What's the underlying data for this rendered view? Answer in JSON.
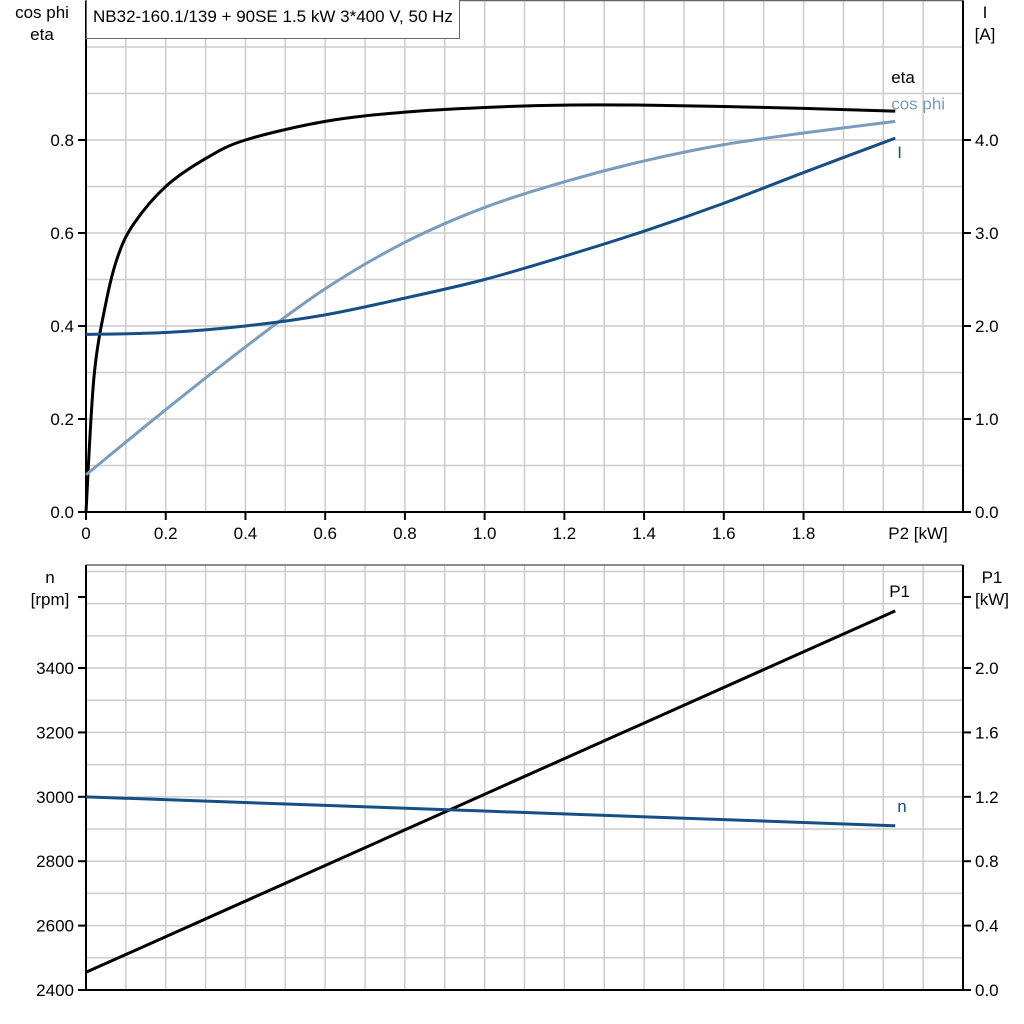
{
  "chart_data": [
    {
      "type": "line",
      "title": "NB32-160.1/139 + 90SE   1.5 kW   3*400 V, 50 Hz",
      "xlabel": "P2 [kW]",
      "ylabel_left": [
        "cos phi",
        "eta"
      ],
      "ylabel_right": [
        "I",
        "[A]"
      ],
      "xlim": [
        0,
        2.2
      ],
      "ylim_left": [
        0,
        1.1
      ],
      "ylim_right": [
        0,
        5.5
      ],
      "x_ticks": [
        "0",
        "0.2",
        "0.4",
        "0.6",
        "0.8",
        "1.0",
        "1.2",
        "1.4",
        "1.6",
        "1.8"
      ],
      "y_ticks_left": [
        "0.0",
        "0.2",
        "0.4",
        "0.6",
        "0.8"
      ],
      "y_ticks_right": [
        "0.0",
        "1.0",
        "2.0",
        "3.0",
        "4.0"
      ],
      "grid": true,
      "series": [
        {
          "name": "eta",
          "axis": "left",
          "color": "#000000",
          "x": [
            0,
            0.02,
            0.05,
            0.08,
            0.12,
            0.2,
            0.3,
            0.4,
            0.6,
            0.8,
            1.0,
            1.2,
            1.4,
            1.6,
            1.8,
            2.03
          ],
          "y": [
            0,
            0.29,
            0.45,
            0.55,
            0.62,
            0.7,
            0.76,
            0.8,
            0.84,
            0.86,
            0.87,
            0.875,
            0.875,
            0.872,
            0.868,
            0.862
          ]
        },
        {
          "name": "cos phi",
          "axis": "left",
          "color": "#7a9cbd",
          "x": [
            0,
            0.2,
            0.4,
            0.6,
            0.8,
            1.0,
            1.2,
            1.4,
            1.6,
            1.8,
            2.03
          ],
          "y": [
            0.08,
            0.22,
            0.355,
            0.48,
            0.58,
            0.655,
            0.71,
            0.755,
            0.79,
            0.815,
            0.84
          ]
        },
        {
          "name": "I",
          "axis": "right",
          "color": "#154f85",
          "x": [
            0,
            0.2,
            0.4,
            0.6,
            0.8,
            1.0,
            1.2,
            1.4,
            1.6,
            1.8,
            2.03
          ],
          "y": [
            1.91,
            1.93,
            2.0,
            2.12,
            2.3,
            2.5,
            2.75,
            3.02,
            3.32,
            3.65,
            4.02
          ]
        }
      ]
    },
    {
      "type": "line",
      "ylabel_left": [
        "n",
        "[rpm]"
      ],
      "ylabel_right": [
        "P1",
        "[kW]"
      ],
      "xlim": [
        0,
        2.2
      ],
      "ylim_left": [
        2400,
        3720
      ],
      "ylim_right": [
        0,
        2.64
      ],
      "y_ticks_left": [
        "2400",
        "2600",
        "2800",
        "3000",
        "3200",
        "3400"
      ],
      "y_ticks_right": [
        "0.0",
        "0.4",
        "0.8",
        "1.2",
        "1.6",
        "2.0"
      ],
      "grid": true,
      "series": [
        {
          "name": "P1",
          "axis": "right",
          "color": "#000000",
          "x": [
            0,
            2.03
          ],
          "y": [
            0.11,
            2.355
          ]
        },
        {
          "name": "n",
          "axis": "left",
          "color": "#154f85",
          "x": [
            0,
            2.03
          ],
          "y": [
            3000,
            2910
          ]
        }
      ]
    }
  ]
}
